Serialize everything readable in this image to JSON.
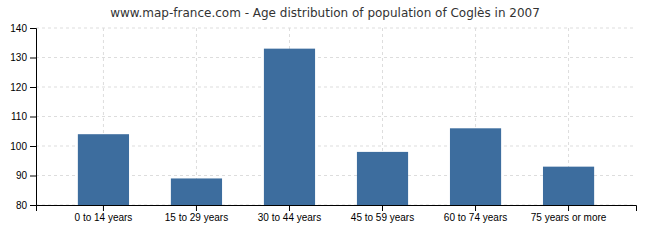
{
  "chart_data": {
    "type": "bar",
    "title": "www.map-france.com - Age distribution of population of Coglès in 2007",
    "categories": [
      "0 to 14 years",
      "15 to 29 years",
      "30 to 44 years",
      "45 to 59 years",
      "60 to 74 years",
      "75 years or more"
    ],
    "values": [
      104,
      89,
      133,
      98,
      106,
      93
    ],
    "color": "#3d6d9e",
    "ylim": [
      80,
      140
    ],
    "yticks": [
      80,
      90,
      100,
      110,
      120,
      130,
      140
    ],
    "grid": true
  }
}
